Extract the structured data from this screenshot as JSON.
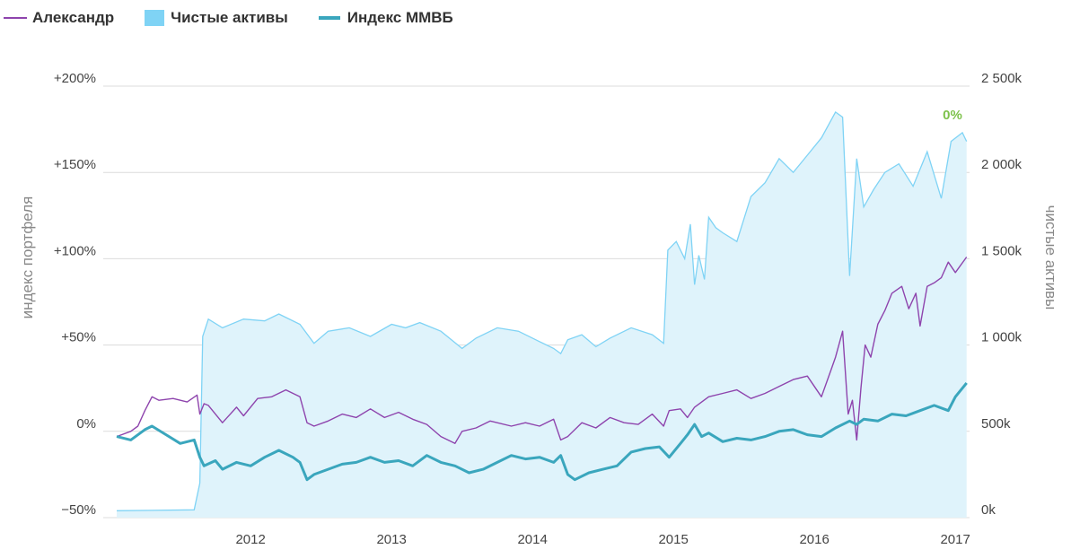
{
  "legend": [
    {
      "label": "Александр",
      "color": "#8e44ad",
      "kind": "line"
    },
    {
      "label": "Чистые активы",
      "color": "#7fd3f5",
      "kind": "area"
    },
    {
      "label": "Индекс ММВБ",
      "color": "#3aa6bd",
      "kind": "thick"
    }
  ],
  "end_label": "0%",
  "end_label_color": "#7dc24b",
  "chart_data": {
    "type": "line",
    "title": "",
    "x_ticks": [
      "2012",
      "2013",
      "2014",
      "2015",
      "2016",
      "2017"
    ],
    "y_left": {
      "label": "индекс портфеля",
      "ticks": [
        "+200%",
        "+150%",
        "+100%",
        "+50%",
        "0%",
        "−50%"
      ],
      "range": [
        -50,
        200
      ],
      "unit": "%"
    },
    "y_right": {
      "label": "чистые активы",
      "ticks": [
        "2 500k",
        "2 000k",
        "1 500k",
        "1 000k",
        "500k",
        "0k"
      ],
      "range": [
        0,
        2500
      ],
      "unit": "k"
    },
    "x_range": [
      2011.0,
      2017.15
    ],
    "grid": true,
    "legend_position": "top-left",
    "series": [
      {
        "name": "Чистые активы",
        "type": "area",
        "axis": "right",
        "color": "#7fd3f5",
        "x": [
          2011.05,
          2011.3,
          2011.6,
          2011.64,
          2011.66,
          2011.7,
          2011.8,
          2011.95,
          2012.1,
          2012.2,
          2012.35,
          2012.45,
          2012.55,
          2012.7,
          2012.85,
          2013.0,
          2013.1,
          2013.2,
          2013.35,
          2013.5,
          2013.6,
          2013.75,
          2013.9,
          2014.05,
          2014.15,
          2014.2,
          2014.25,
          2014.35,
          2014.45,
          2014.55,
          2014.7,
          2014.85,
          2014.93,
          2014.96,
          2015.02,
          2015.08,
          2015.12,
          2015.15,
          2015.18,
          2015.22,
          2015.25,
          2015.3,
          2015.35,
          2015.45,
          2015.55,
          2015.65,
          2015.75,
          2015.85,
          2015.95,
          2016.05,
          2016.15,
          2016.2,
          2016.25,
          2016.3,
          2016.35,
          2016.42,
          2016.5,
          2016.6,
          2016.7,
          2016.8,
          2016.9,
          2016.97,
          2017.05,
          2017.08
        ],
        "y": [
          40,
          42,
          45,
          200,
          1050,
          1150,
          1100,
          1150,
          1140,
          1180,
          1120,
          1010,
          1080,
          1100,
          1050,
          1120,
          1100,
          1130,
          1080,
          980,
          1040,
          1100,
          1080,
          1020,
          980,
          950,
          1030,
          1060,
          990,
          1040,
          1100,
          1060,
          1010,
          1550,
          1600,
          1500,
          1700,
          1350,
          1520,
          1380,
          1740,
          1680,
          1650,
          1600,
          1860,
          1940,
          2080,
          2000,
          2100,
          2200,
          2350,
          2320,
          1400,
          2080,
          1800,
          1900,
          2000,
          2050,
          1920,
          2120,
          1850,
          2180,
          2230,
          2180
        ]
      },
      {
        "name": "Александр",
        "type": "line",
        "axis": "left",
        "color": "#8e44ad",
        "x": [
          2011.05,
          2011.15,
          2011.2,
          2011.25,
          2011.3,
          2011.35,
          2011.45,
          2011.55,
          2011.62,
          2011.64,
          2011.67,
          2011.7,
          2011.8,
          2011.9,
          2011.95,
          2012.05,
          2012.15,
          2012.25,
          2012.35,
          2012.4,
          2012.45,
          2012.55,
          2012.65,
          2012.75,
          2012.85,
          2012.95,
          2013.05,
          2013.15,
          2013.25,
          2013.35,
          2013.45,
          2013.5,
          2013.6,
          2013.7,
          2013.85,
          2013.95,
          2014.05,
          2014.15,
          2014.2,
          2014.25,
          2014.35,
          2014.45,
          2014.55,
          2014.65,
          2014.75,
          2014.85,
          2014.93,
          2014.97,
          2015.05,
          2015.1,
          2015.15,
          2015.25,
          2015.35,
          2015.45,
          2015.55,
          2015.65,
          2015.75,
          2015.85,
          2015.95,
          2016.05,
          2016.12,
          2016.15,
          2016.2,
          2016.24,
          2016.27,
          2016.3,
          2016.33,
          2016.36,
          2016.4,
          2016.45,
          2016.5,
          2016.55,
          2016.62,
          2016.67,
          2016.72,
          2016.75,
          2016.8,
          2016.85,
          2016.9,
          2016.95,
          2017.0,
          2017.08
        ],
        "y": [
          -3,
          0,
          3,
          12,
          20,
          18,
          19,
          17,
          21,
          10,
          16,
          15,
          5,
          14,
          9,
          19,
          20,
          24,
          20,
          5,
          3,
          6,
          10,
          8,
          13,
          8,
          11,
          7,
          4,
          -3,
          -7,
          0,
          2,
          6,
          3,
          5,
          3,
          7,
          -5,
          -3,
          5,
          2,
          8,
          5,
          4,
          10,
          3,
          12,
          13,
          8,
          14,
          20,
          22,
          24,
          19,
          22,
          26,
          30,
          32,
          20,
          36,
          43,
          58,
          10,
          18,
          -5,
          25,
          50,
          43,
          62,
          70,
          80,
          84,
          71,
          80,
          61,
          84,
          86,
          89,
          98,
          92,
          101
        ]
      },
      {
        "name": "Индекс ММВБ",
        "type": "line",
        "axis": "left",
        "color": "#3aa6bd",
        "x": [
          2011.05,
          2011.15,
          2011.25,
          2011.3,
          2011.4,
          2011.5,
          2011.6,
          2011.64,
          2011.67,
          2011.75,
          2011.8,
          2011.9,
          2012.0,
          2012.1,
          2012.2,
          2012.3,
          2012.35,
          2012.4,
          2012.45,
          2012.55,
          2012.65,
          2012.75,
          2012.85,
          2012.95,
          2013.05,
          2013.15,
          2013.25,
          2013.35,
          2013.45,
          2013.55,
          2013.65,
          2013.75,
          2013.85,
          2013.95,
          2014.05,
          2014.15,
          2014.2,
          2014.25,
          2014.3,
          2014.4,
          2014.5,
          2014.6,
          2014.7,
          2014.8,
          2014.9,
          2014.97,
          2015.05,
          2015.1,
          2015.15,
          2015.2,
          2015.25,
          2015.35,
          2015.45,
          2015.55,
          2015.65,
          2015.75,
          2015.85,
          2015.95,
          2016.05,
          2016.15,
          2016.25,
          2016.3,
          2016.35,
          2016.45,
          2016.55,
          2016.65,
          2016.75,
          2016.85,
          2016.95,
          2017.0,
          2017.08
        ],
        "y": [
          -3,
          -5,
          1,
          3,
          -2,
          -7,
          -5,
          -15,
          -20,
          -17,
          -22,
          -18,
          -20,
          -15,
          -11,
          -15,
          -18,
          -28,
          -25,
          -22,
          -19,
          -18,
          -15,
          -18,
          -17,
          -20,
          -14,
          -18,
          -20,
          -24,
          -22,
          -18,
          -14,
          -16,
          -15,
          -18,
          -14,
          -25,
          -28,
          -24,
          -22,
          -20,
          -12,
          -10,
          -9,
          -15,
          -7,
          -2,
          4,
          -3,
          -1,
          -6,
          -4,
          -5,
          -3,
          0,
          1,
          -2,
          -3,
          2,
          6,
          4,
          7,
          6,
          10,
          9,
          12,
          15,
          12,
          20,
          28
        ]
      }
    ]
  }
}
